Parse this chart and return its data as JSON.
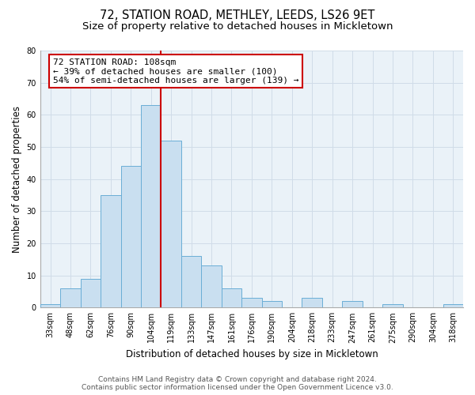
{
  "title": "72, STATION ROAD, METHLEY, LEEDS, LS26 9ET",
  "subtitle": "Size of property relative to detached houses in Mickletown",
  "xlabel": "Distribution of detached houses by size in Mickletown",
  "ylabel": "Number of detached properties",
  "bin_labels": [
    "33sqm",
    "48sqm",
    "62sqm",
    "76sqm",
    "90sqm",
    "104sqm",
    "119sqm",
    "133sqm",
    "147sqm",
    "161sqm",
    "176sqm",
    "190sqm",
    "204sqm",
    "218sqm",
    "233sqm",
    "247sqm",
    "261sqm",
    "275sqm",
    "290sqm",
    "304sqm",
    "318sqm"
  ],
  "bar_heights": [
    1,
    6,
    9,
    35,
    44,
    63,
    52,
    16,
    13,
    6,
    3,
    2,
    0,
    3,
    0,
    2,
    0,
    1,
    0,
    0,
    1
  ],
  "bar_color": "#c9dff0",
  "bar_edge_color": "#6aaed6",
  "red_line_color": "#cc0000",
  "annotation_text": "72 STATION ROAD: 108sqm\n← 39% of detached houses are smaller (100)\n54% of semi-detached houses are larger (139) →",
  "annotation_box_color": "white",
  "annotation_box_edge": "#cc0000",
  "ylim": [
    0,
    80
  ],
  "yticks": [
    0,
    10,
    20,
    30,
    40,
    50,
    60,
    70,
    80
  ],
  "footer_line1": "Contains HM Land Registry data © Crown copyright and database right 2024.",
  "footer_line2": "Contains public sector information licensed under the Open Government Licence v3.0.",
  "title_fontsize": 10.5,
  "subtitle_fontsize": 9.5,
  "xlabel_fontsize": 8.5,
  "ylabel_fontsize": 8.5,
  "tick_fontsize": 7,
  "annotation_fontsize": 8,
  "footer_fontsize": 6.5,
  "grid_color": "#d0dce8",
  "bg_color": "#eaf2f8"
}
